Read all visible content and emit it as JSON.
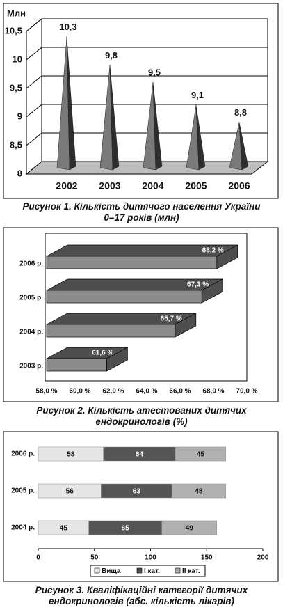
{
  "chart_data": [
    {
      "type": "cone",
      "caption": "Рисунок 1. Кількість дитячого населення України 0–17 років (млн)",
      "y_label": "Млн",
      "categories": [
        "2002",
        "2003",
        "2004",
        "2005",
        "2006"
      ],
      "values": [
        10.3,
        9.8,
        9.5,
        9.1,
        8.8
      ],
      "value_labels": [
        "10,3",
        "9,8",
        "9,5",
        "9,1",
        "8,8"
      ],
      "ylim": [
        8,
        10.5
      ],
      "yticks": [
        8,
        {
          "value": 8.5,
          "label": "8,5"
        },
        9,
        {
          "value": 9.5,
          "label": "9,5"
        },
        10,
        {
          "value": 10.5,
          "label": "10,5"
        }
      ],
      "color": "#7a7a7a",
      "shade_color": "#2e2e2e",
      "floor_color": "#bdbdbd",
      "grid": true
    },
    {
      "type": "bar",
      "orientation": "horizontal",
      "caption": "Рисунок 2. Кількість атестованих дитячих ендокринологів (%)",
      "categories": [
        "2003 р.",
        "2004 р.",
        "2005 р.",
        "2006 р."
      ],
      "values": [
        61.6,
        65.7,
        67.3,
        68.2
      ],
      "value_labels": [
        "61,6 %",
        "65,7 %",
        "67,3 %",
        "68,2 %"
      ],
      "xlim": [
        58,
        70
      ],
      "xticks": [
        {
          "value": 58,
          "label": "58,0 %"
        },
        {
          "value": 60,
          "label": "60,0 %"
        },
        {
          "value": 62,
          "label": "62,0 %"
        },
        {
          "value": 64,
          "label": "64,0 %"
        },
        {
          "value": 66,
          "label": "66,0 %"
        },
        {
          "value": 68,
          "label": "68,0 %"
        },
        {
          "value": 70,
          "label": "70,0 %"
        }
      ],
      "color": "#8c8c8c",
      "shade_color": "#4e4e4e"
    },
    {
      "type": "stacked-bar",
      "orientation": "horizontal",
      "caption": "Рисунок 3. Кваліфікаційні категорії дитячих ендокринологів (абс. кількість лікарів)",
      "categories": [
        "2004 р.",
        "2005 р.",
        "2006 р."
      ],
      "series": [
        {
          "name": "Вища",
          "color": "#e6e6e6",
          "values": [
            45,
            56,
            58
          ]
        },
        {
          "name": "І кат.",
          "color": "#555555",
          "values": [
            65,
            63,
            64
          ]
        },
        {
          "name": "ІІ кат.",
          "color": "#b0b0b0",
          "values": [
            49,
            48,
            45
          ]
        }
      ],
      "xlim": [
        0,
        200
      ],
      "xticks": [
        0,
        50,
        100,
        150,
        200
      ],
      "legend": "bottom"
    }
  ]
}
